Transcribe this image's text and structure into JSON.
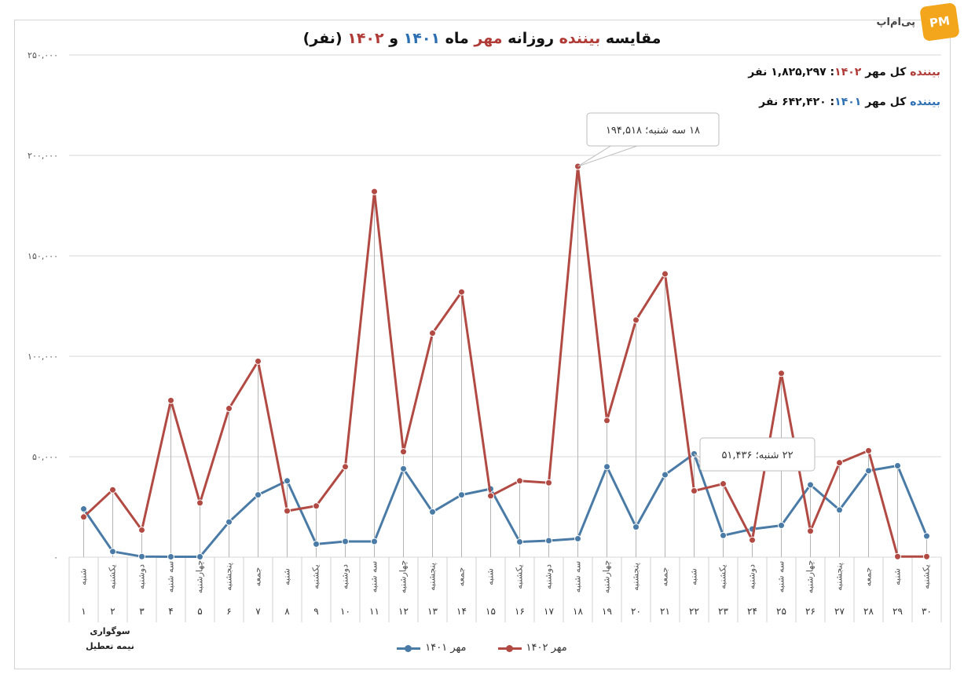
{
  "brand": {
    "text": "پی‌ام‌اپ",
    "logo": "PM"
  },
  "title": {
    "part1": "مقایسه ",
    "part2": "بیننده",
    "part3": " روزانه ",
    "part4": "مهر",
    "part5": " ماه ",
    "part6": "۱۴۰۱",
    "part7": " و ",
    "part8": "۱۴۰۲",
    "part9": " (نفر)"
  },
  "totals": {
    "t1402": {
      "label_a": "بیننده",
      "label_b": " کل مهر ",
      "year": "۱۴۰۲",
      "value": ": ۱,۸۲۵,۲۹۷ نفر"
    },
    "t1401": {
      "label_a": "بیننده",
      "label_b": " کل مهر ",
      "year": "۱۴۰۱",
      "value": ": ۶۴۲,۴۲۰ نفر"
    }
  },
  "notes": {
    "line1": "سوگواری",
    "line2": "نیمه تعطیل"
  },
  "colors": {
    "series_1401": "#4a7ba6",
    "series_1402": "#b24a44",
    "grid": "#d9d9d9",
    "axis_text": "#555555"
  },
  "chart_data": {
    "type": "line",
    "ylim": [
      0,
      250000
    ],
    "yticks": [
      0,
      50000,
      100000,
      150000,
      200000,
      250000
    ],
    "ytick_labels": [
      "۰",
      "۵۰,۰۰۰",
      "۱۰۰,۰۰۰",
      "۱۵۰,۰۰۰",
      "۲۰۰,۰۰۰",
      "۲۵۰,۰۰۰"
    ],
    "x_days": [
      "۱",
      "۲",
      "۳",
      "۴",
      "۵",
      "۶",
      "۷",
      "۸",
      "۹",
      "۱۰",
      "۱۱",
      "۱۲",
      "۱۳",
      "۱۴",
      "۱۵",
      "۱۶",
      "۱۷",
      "۱۸",
      "۱۹",
      "۲۰",
      "۲۱",
      "۲۲",
      "۲۳",
      "۲۴",
      "۲۵",
      "۲۶",
      "۲۷",
      "۲۸",
      "۲۹",
      "۳۰"
    ],
    "x_weekdays": [
      "شنبه",
      "یکشنبه",
      "دوشنبه",
      "سه شنبه",
      "چهارشنبه",
      "پنجشنبه",
      "جمعه",
      "شنبه",
      "یکشنبه",
      "دوشنبه",
      "سه شنبه",
      "چهارشنبه",
      "پنجشنبه",
      "جمعه",
      "شنبه",
      "یکشنبه",
      "دوشنبه",
      "سه شنبه",
      "چهارشنبه",
      "پنجشنبه",
      "جمعه",
      "شنبه",
      "یکشنبه",
      "دوشنبه",
      "سه شنبه",
      "چهارشنبه",
      "پنجشنبه",
      "جمعه",
      "شنبه",
      "یکشنبه"
    ],
    "series": [
      {
        "name": "مهر ۱۴۰۱",
        "values": [
          24000,
          2800,
          300,
          200,
          200,
          17500,
          31000,
          38000,
          6500,
          7800,
          7800,
          44000,
          22500,
          31000,
          34000,
          7600,
          8200,
          9200,
          45000,
          15000,
          41000,
          51436,
          10800,
          14000,
          15800,
          36000,
          23500,
          43000,
          45500,
          10500
        ]
      },
      {
        "name": "مهر ۱۴۰۲",
        "values": [
          20000,
          33500,
          13500,
          78000,
          27000,
          74000,
          97500,
          23000,
          25500,
          45000,
          182000,
          52500,
          111500,
          132000,
          30500,
          38000,
          37000,
          194518,
          68000,
          118000,
          141000,
          33000,
          36500,
          8500,
          91500,
          13000,
          47000,
          53000,
          300,
          300
        ]
      }
    ],
    "annotations": [
      {
        "series": 1,
        "index": 17,
        "text": "۱۸ سه شنبه؛ ۱۹۴,۵۱۸"
      },
      {
        "series": 0,
        "index": 21,
        "text": "۲۲ شنبه؛ ۵۱,۴۳۶"
      }
    ]
  }
}
